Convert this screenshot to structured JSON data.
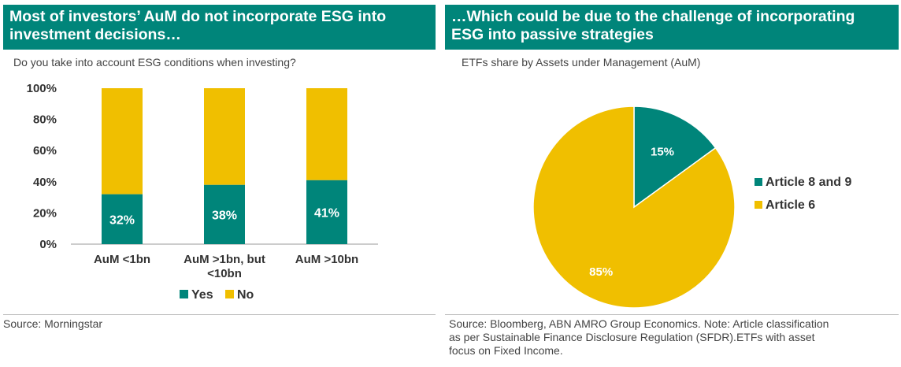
{
  "colors": {
    "teal": "#00857a",
    "gold": "#f0bf00",
    "axis": "#999999",
    "text": "#333333"
  },
  "left_panel": {
    "title_line1": "Most of investors’ AuM do not incorporate ESG into",
    "title_line2": "investment decisions…",
    "subtitle": "Do you take into account ESG conditions when investing?",
    "source": "Source: Morningstar"
  },
  "right_panel": {
    "title_line1": "…Which could be due to the challenge of incorporating",
    "title_line2": "ESG into passive strategies",
    "subtitle": "ETFs share by Assets under Management (AuM)",
    "source_line1": "Source: Bloomberg, ABN AMRO Group Economics. Note: Article classification",
    "source_line2": "as per Sustainable Finance Disclosure Regulation (SFDR).ETFs with asset",
    "source_line3": "focus on Fixed Income."
  },
  "chart_data": [
    {
      "type": "bar",
      "stacked": true,
      "title": "Do you take into account ESG conditions when investing?",
      "categories": [
        [
          "AuM <1bn"
        ],
        [
          "AuM >1bn, but",
          "<10bn"
        ],
        [
          "AuM >10bn"
        ]
      ],
      "series": [
        {
          "name": "Yes",
          "values": [
            32,
            38,
            41
          ],
          "labels": [
            "32%",
            "38%",
            "41%"
          ]
        },
        {
          "name": "No",
          "values": [
            68,
            62,
            59
          ]
        }
      ],
      "ylim": [
        0,
        100
      ],
      "yticks": [
        "0%",
        "20%",
        "40%",
        "60%",
        "80%",
        "100%"
      ],
      "legend": [
        "Yes",
        "No"
      ],
      "legend_position": "bottom"
    },
    {
      "type": "pie",
      "title": "ETFs share by Assets under Management (AuM)",
      "slices": [
        {
          "name": "Article 8 and 9",
          "value": 15,
          "label": "15%"
        },
        {
          "name": "Article 6",
          "value": 85,
          "label": "85%"
        }
      ],
      "legend": [
        "Article 8 and 9",
        "Article 6"
      ],
      "legend_position": "right"
    }
  ]
}
